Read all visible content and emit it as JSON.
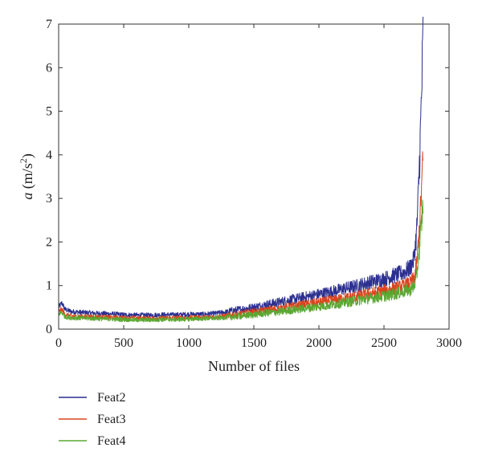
{
  "chart_data": {
    "type": "line",
    "title": "",
    "xlabel": "Number of files",
    "ylabel": {
      "symbol": "a",
      "unit_open": " (m/s",
      "unit_exp": "2",
      "unit_close": ")"
    },
    "xlim": [
      0,
      3000
    ],
    "ylim": [
      0,
      7
    ],
    "xticks": [
      0,
      500,
      1000,
      1500,
      2000,
      2500,
      3000
    ],
    "yticks": [
      0,
      1,
      2,
      3,
      4,
      5,
      6,
      7
    ],
    "grid": false,
    "legend_position": "below",
    "series": [
      {
        "name": "Feat2",
        "color": "#2b2f8f",
        "x": [
          0,
          25,
          50,
          100,
          200,
          300,
          400,
          500,
          600,
          700,
          800,
          900,
          1000,
          1100,
          1200,
          1300,
          1400,
          1500,
          1600,
          1700,
          1800,
          1900,
          2000,
          2100,
          2200,
          2300,
          2400,
          2500,
          2600,
          2650,
          2700,
          2730,
          2750,
          2760,
          2770,
          2780,
          2790,
          2800
        ],
        "y": [
          0.5,
          0.6,
          0.45,
          0.4,
          0.38,
          0.36,
          0.35,
          0.33,
          0.32,
          0.32,
          0.33,
          0.33,
          0.34,
          0.34,
          0.36,
          0.4,
          0.45,
          0.5,
          0.56,
          0.62,
          0.68,
          0.74,
          0.8,
          0.86,
          0.93,
          1.0,
          1.08,
          1.15,
          1.25,
          1.3,
          1.4,
          1.6,
          2.2,
          2.8,
          3.6,
          4.5,
          5.5,
          6.7
        ]
      },
      {
        "name": "Feat3",
        "color": "#d9451e",
        "x": [
          0,
          25,
          50,
          100,
          200,
          300,
          400,
          500,
          600,
          700,
          800,
          900,
          1000,
          1100,
          1200,
          1300,
          1400,
          1500,
          1600,
          1700,
          1800,
          1900,
          2000,
          2100,
          2200,
          2300,
          2400,
          2500,
          2600,
          2650,
          2700,
          2730,
          2750,
          2760,
          2770,
          2780,
          2790,
          2800
        ],
        "y": [
          0.4,
          0.45,
          0.33,
          0.3,
          0.29,
          0.28,
          0.27,
          0.26,
          0.25,
          0.25,
          0.25,
          0.26,
          0.26,
          0.27,
          0.28,
          0.31,
          0.35,
          0.39,
          0.43,
          0.47,
          0.52,
          0.56,
          0.61,
          0.66,
          0.71,
          0.76,
          0.82,
          0.88,
          0.95,
          0.99,
          1.05,
          1.15,
          1.45,
          1.8,
          2.2,
          2.7,
          3.3,
          3.9
        ]
      },
      {
        "name": "Feat4",
        "color": "#5aa832",
        "x": [
          0,
          25,
          50,
          100,
          200,
          300,
          400,
          500,
          600,
          700,
          800,
          900,
          1000,
          1100,
          1200,
          1300,
          1400,
          1500,
          1600,
          1700,
          1800,
          1900,
          2000,
          2100,
          2200,
          2300,
          2400,
          2500,
          2600,
          2650,
          2700,
          2730,
          2750,
          2760,
          2770,
          2780,
          2790,
          2800
        ],
        "y": [
          0.35,
          0.38,
          0.28,
          0.26,
          0.25,
          0.24,
          0.23,
          0.22,
          0.21,
          0.21,
          0.22,
          0.22,
          0.23,
          0.24,
          0.25,
          0.27,
          0.3,
          0.33,
          0.37,
          0.4,
          0.44,
          0.48,
          0.52,
          0.56,
          0.61,
          0.66,
          0.71,
          0.76,
          0.82,
          0.86,
          0.9,
          0.98,
          1.2,
          1.5,
          1.8,
          2.1,
          2.5,
          2.9
        ]
      }
    ]
  }
}
